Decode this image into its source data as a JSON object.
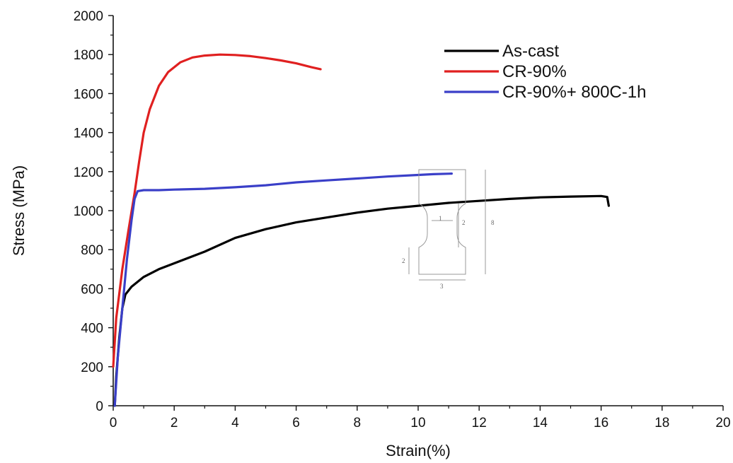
{
  "chart_data": {
    "type": "line",
    "title": "",
    "xlabel": "Strain(%)",
    "ylabel": "Stress (MPa)",
    "xlim": [
      0,
      20
    ],
    "ylim": [
      0,
      2000
    ],
    "x_ticks": [
      "0",
      "2",
      "4",
      "6",
      "8",
      "10",
      "12",
      "14",
      "16",
      "18",
      "20"
    ],
    "y_ticks": [
      "0",
      "200",
      "400",
      "600",
      "800",
      "1000",
      "1200",
      "1400",
      "1600",
      "1800",
      "2000"
    ],
    "grid": false,
    "legend_position": "top-right",
    "series": [
      {
        "name": "As-cast",
        "color": "#000000",
        "points": [
          [
            0.05,
            0
          ],
          [
            0.1,
            150
          ],
          [
            0.2,
            350
          ],
          [
            0.3,
            500
          ],
          [
            0.4,
            570
          ],
          [
            0.6,
            610
          ],
          [
            1,
            660
          ],
          [
            1.5,
            700
          ],
          [
            2,
            730
          ],
          [
            3,
            790
          ],
          [
            4,
            860
          ],
          [
            5,
            905
          ],
          [
            6,
            940
          ],
          [
            7,
            965
          ],
          [
            8,
            990
          ],
          [
            9,
            1010
          ],
          [
            10,
            1025
          ],
          [
            11,
            1040
          ],
          [
            12,
            1050
          ],
          [
            13,
            1060
          ],
          [
            14,
            1068
          ],
          [
            15,
            1072
          ],
          [
            16,
            1075
          ],
          [
            16.2,
            1070
          ],
          [
            16.25,
            1025
          ]
        ]
      },
      {
        "name": "CR-90%",
        "color": "#e02020",
        "points": [
          [
            0,
            200
          ],
          [
            0.1,
            450
          ],
          [
            0.3,
            700
          ],
          [
            0.5,
            900
          ],
          [
            0.7,
            1090
          ],
          [
            0.85,
            1250
          ],
          [
            1,
            1400
          ],
          [
            1.2,
            1520
          ],
          [
            1.5,
            1640
          ],
          [
            1.8,
            1710
          ],
          [
            2.2,
            1760
          ],
          [
            2.6,
            1785
          ],
          [
            3,
            1795
          ],
          [
            3.5,
            1800
          ],
          [
            4,
            1798
          ],
          [
            4.5,
            1792
          ],
          [
            5,
            1782
          ],
          [
            5.5,
            1770
          ],
          [
            6,
            1755
          ],
          [
            6.5,
            1735
          ],
          [
            6.8,
            1725
          ]
        ]
      },
      {
        "name": "CR-90%+ 800C-1h",
        "color": "#3a3fc8",
        "points": [
          [
            0.05,
            0
          ],
          [
            0.15,
            250
          ],
          [
            0.3,
            500
          ],
          [
            0.45,
            750
          ],
          [
            0.6,
            950
          ],
          [
            0.7,
            1060
          ],
          [
            0.8,
            1100
          ],
          [
            1,
            1105
          ],
          [
            1.5,
            1105
          ],
          [
            2,
            1108
          ],
          [
            3,
            1112
          ],
          [
            4,
            1120
          ],
          [
            5,
            1130
          ],
          [
            6,
            1145
          ],
          [
            7,
            1155
          ],
          [
            8,
            1165
          ],
          [
            9,
            1175
          ],
          [
            10,
            1183
          ],
          [
            10.5,
            1187
          ],
          [
            11.1,
            1190
          ]
        ]
      }
    ]
  }
}
